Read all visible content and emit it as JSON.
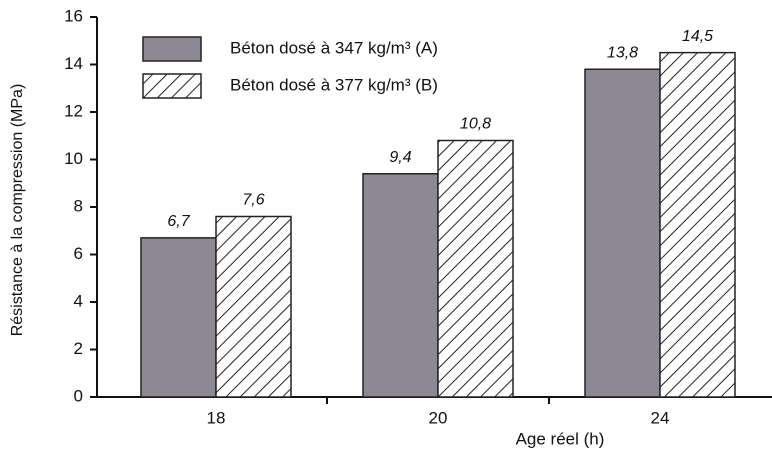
{
  "chart_data": {
    "type": "bar",
    "y_label": "Résistance à la compression (MPa)",
    "x_label": "Age réel  (h)",
    "categories": [
      "18",
      "20",
      "24"
    ],
    "series": [
      {
        "name": "Béton dosé à 347 kg/m³  (A)",
        "color": "#8d8894",
        "pattern": "solid",
        "values": [
          6.7,
          9.4,
          13.8
        ],
        "value_labels": [
          "6,7",
          "9,4",
          "13,8"
        ]
      },
      {
        "name": "Béton dosé à 377 kg/m³  (B)",
        "color": "#ffffff",
        "pattern": "hatch",
        "values": [
          7.6,
          10.8,
          14.5
        ],
        "value_labels": [
          "7,6",
          "10,8",
          "14,5"
        ]
      }
    ],
    "ylim": [
      0,
      16
    ],
    "yticks": [
      0,
      2,
      4,
      6,
      8,
      10,
      12,
      14,
      16
    ],
    "grid": false,
    "legend": "upper left"
  }
}
